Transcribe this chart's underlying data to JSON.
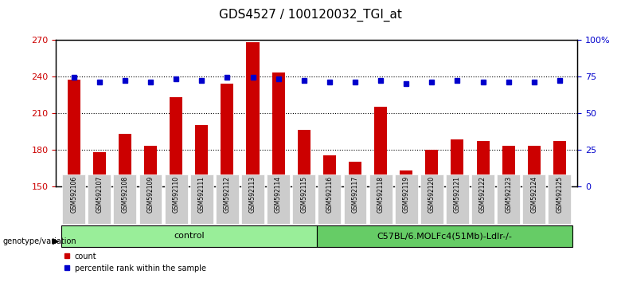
{
  "title": "GDS4527 / 100120032_TGI_at",
  "samples": [
    "GSM592106",
    "GSM592107",
    "GSM592108",
    "GSM592109",
    "GSM592110",
    "GSM592111",
    "GSM592112",
    "GSM592113",
    "GSM592114",
    "GSM592115",
    "GSM592116",
    "GSM592117",
    "GSM592118",
    "GSM592119",
    "GSM592120",
    "GSM592121",
    "GSM592122",
    "GSM592123",
    "GSM592124",
    "GSM592125"
  ],
  "bar_values": [
    237,
    178,
    193,
    183,
    223,
    200,
    234,
    268,
    243,
    196,
    175,
    170,
    215,
    163,
    180,
    188,
    187,
    183,
    183,
    187
  ],
  "dot_values": [
    74,
    71,
    72,
    71,
    73,
    72,
    74,
    74,
    73,
    72,
    71,
    71,
    72,
    70,
    71,
    72,
    71,
    71,
    71,
    72
  ],
  "ylim_left": [
    150,
    270
  ],
  "ylim_right": [
    0,
    100
  ],
  "yticks_left": [
    150,
    180,
    210,
    240,
    270
  ],
  "yticks_right": [
    0,
    25,
    50,
    75,
    100
  ],
  "ytick_labels_right": [
    "0",
    "25",
    "50",
    "75",
    "100%"
  ],
  "bar_color": "#cc0000",
  "dot_color": "#0000cc",
  "grid_color": "#000000",
  "bg_plot": "#ffffff",
  "bg_xticklabels": "#cccccc",
  "control_label": "control",
  "genotype_label": "genotype/variation",
  "group2_label": "C57BL/6.MOLFc4(51Mb)-Ldlr-/-",
  "control_indices": [
    0,
    1,
    2,
    3,
    4,
    5,
    6,
    7,
    8,
    9
  ],
  "group2_indices": [
    10,
    11,
    12,
    13,
    14,
    15,
    16,
    17,
    18,
    19
  ],
  "legend_count_label": "count",
  "legend_pct_label": "percentile rank within the sample",
  "title_fontsize": 11,
  "bar_width": 0.5
}
